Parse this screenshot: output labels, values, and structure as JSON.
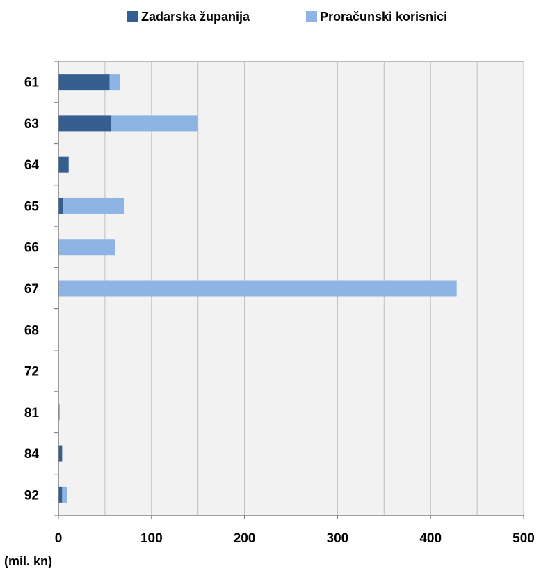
{
  "chart_data": {
    "type": "bar",
    "orientation": "horizontal",
    "stacked": true,
    "title": "",
    "xlabel": "(mil. kn)",
    "ylabel": "",
    "categories": [
      "61",
      "63",
      "64",
      "65",
      "66",
      "67",
      "68",
      "72",
      "81",
      "84",
      "92"
    ],
    "series": [
      {
        "name": "Zadarska županija",
        "color": "#355f91",
        "values": [
          55,
          57,
          11,
          5,
          0,
          0,
          0,
          0,
          0.5,
          4,
          4
        ]
      },
      {
        "name": "Proračunski korisnici",
        "color": "#8eb4e3",
        "values": [
          11,
          93,
          0,
          66,
          61,
          428,
          0,
          0,
          1,
          0,
          5
        ]
      }
    ],
    "xlim": [
      0,
      500
    ],
    "xticks": [
      0,
      100,
      200,
      300,
      400,
      500
    ],
    "grid": true,
    "legend_position": "top",
    "plot_background": "#f2f2f2"
  }
}
